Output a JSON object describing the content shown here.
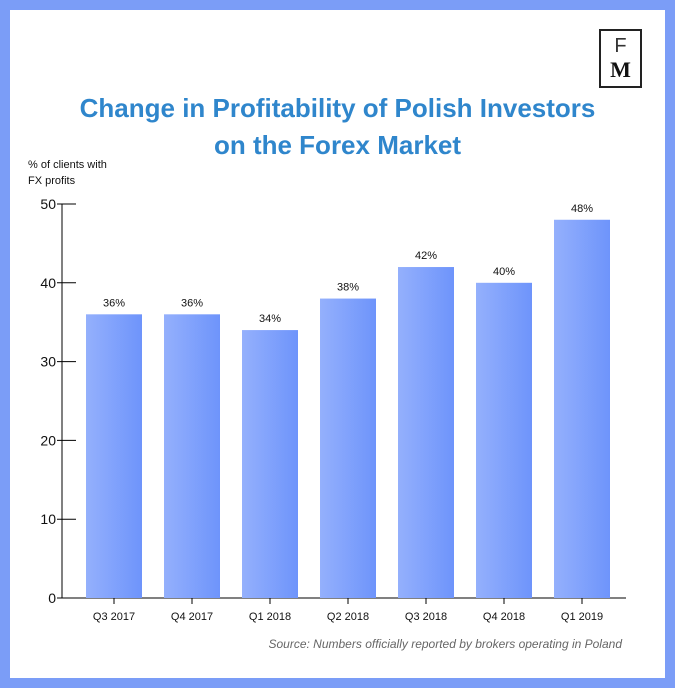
{
  "title": {
    "line1": "Change in Profitability of Polish Investors",
    "line2": "on the Forex Market"
  },
  "logo": {
    "top": "F",
    "bottom": "M"
  },
  "source": "Source: Numbers officially reported by brokers operating in Poland",
  "colors": {
    "frame": "#7b9df7",
    "title": "#2f86cc",
    "bar_light": "#94b0fc",
    "bar_dark": "#6e94fb"
  },
  "chart_data": {
    "type": "bar",
    "ylabel_lines": [
      "% of clients with",
      "FX profits"
    ],
    "categories": [
      "Q3 2017",
      "Q4 2017",
      "Q1 2018",
      "Q2 2018",
      "Q3 2018",
      "Q4 2018",
      "Q1 2019"
    ],
    "values": [
      36,
      36,
      34,
      38,
      42,
      40,
      48
    ],
    "data_labels": [
      "36%",
      "36%",
      "34%",
      "38%",
      "42%",
      "40%",
      "48%"
    ],
    "ylim": [
      0,
      50
    ],
    "yticks": [
      0,
      10,
      20,
      30,
      40,
      50
    ],
    "grid": false,
    "legend": "none"
  }
}
